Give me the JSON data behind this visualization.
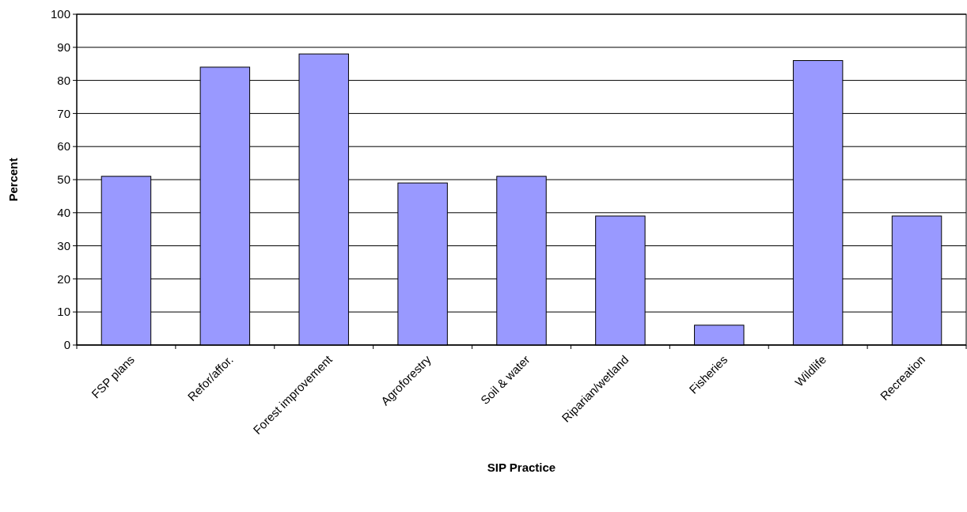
{
  "chart_data": {
    "type": "bar",
    "xlabel": "SIP Practice",
    "ylabel": "Percent",
    "categories": [
      "FSP plans",
      "Refor/affor.",
      "Forest improvement",
      "Agroforestry",
      "Soil & water",
      "Riparian/wetland",
      "Fisheries",
      "Wildlife",
      "Recreation"
    ],
    "values": [
      51,
      84,
      88,
      49,
      51,
      39,
      6,
      86,
      39
    ],
    "color": "#9999ff",
    "ylim": [
      0,
      100
    ],
    "yticks": [
      0,
      10,
      20,
      30,
      40,
      50,
      60,
      70,
      80,
      90,
      100
    ],
    "grid": "y"
  }
}
